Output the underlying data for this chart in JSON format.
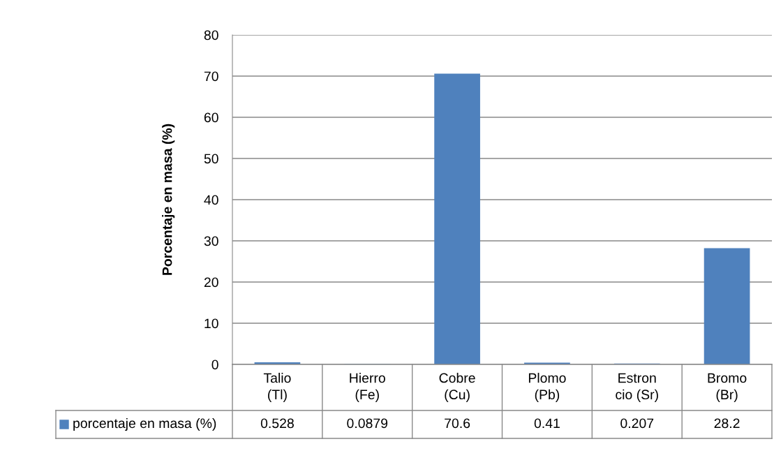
{
  "chart_data": {
    "type": "bar",
    "ylabel": "Porcentaje en masa (%)",
    "categories": [
      "Talio\n(Tl)",
      "Hierro\n(Fe)",
      "Cobre\n(Cu)",
      "Plomo\n(Pb)",
      "Estron\ncio (Sr)",
      "Bromo\n(Br)"
    ],
    "series": [
      {
        "name": "porcentaje en masa (%)",
        "color": "#4f81bd",
        "values": [
          0.528,
          0.0879,
          70.6,
          0.41,
          0.207,
          28.2
        ]
      }
    ],
    "ylim": [
      0,
      80
    ],
    "yticks": [
      0,
      10,
      20,
      30,
      40,
      50,
      60,
      70,
      80
    ],
    "grid": "y",
    "data_labels": true,
    "legend": "bottom left"
  }
}
